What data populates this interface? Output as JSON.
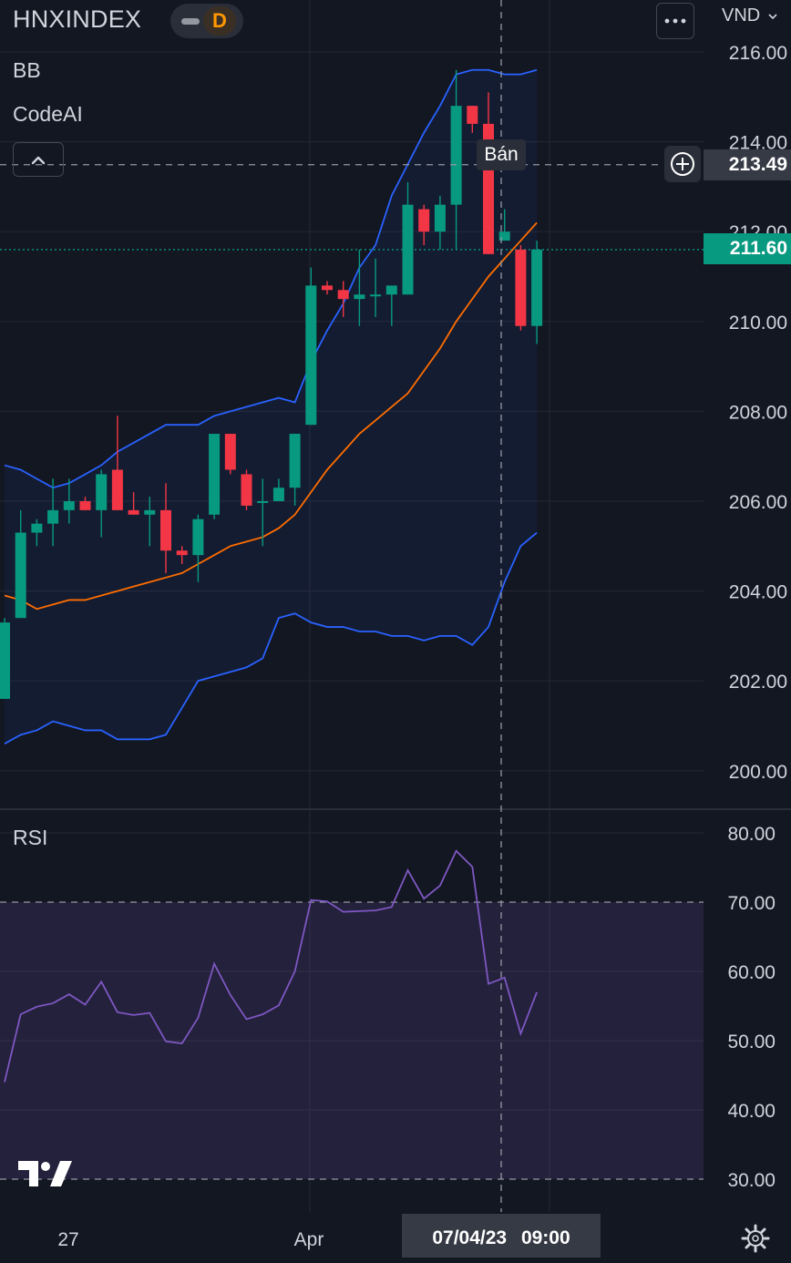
{
  "header": {
    "symbol": "HNXINDEX",
    "interval": "D",
    "currency": "VND",
    "indicators": [
      "BB",
      "CodeAI"
    ],
    "rsi_label": "RSI"
  },
  "price_axis": {
    "ticks": [
      "216.00",
      "214.00",
      "212.00",
      "210.00",
      "208.00",
      "206.00",
      "204.00",
      "202.00",
      "200.00"
    ],
    "crosshair_price": "213.49",
    "last_price": "211.60"
  },
  "rsi_axis": {
    "ticks": [
      "80.00",
      "70.00",
      "60.00",
      "50.00",
      "40.00",
      "30.00"
    ]
  },
  "time_axis": {
    "labels": [
      "27",
      "Apr"
    ],
    "crosshair_date": "07/04/23",
    "crosshair_time": "09:00"
  },
  "signal_label": "Bán",
  "icons": {
    "more": "more-icon",
    "collapse": "chevron-up-icon",
    "add": "plus-circle-icon",
    "settings": "gear-icon",
    "logo": "tradingview-logo"
  },
  "colors": {
    "background": "#131722",
    "up": "#089981",
    "down": "#f23645",
    "bb_band": "#2962ff",
    "bb_basis": "#ff6d00",
    "rsi": "#7e57c2",
    "accent": "#ff9800"
  },
  "chart_data": [
    {
      "type": "candlestick",
      "title": "HNXINDEX",
      "indicators": [
        "Bollinger Bands",
        "CodeAI"
      ],
      "ylim": [
        199.2,
        216.4
      ],
      "y_ticks": [
        216,
        214,
        212,
        210,
        208,
        206,
        204,
        202,
        200
      ],
      "grid": true,
      "candles": [
        {
          "o": 201.6,
          "h": 203.4,
          "l": 201.6,
          "c": 203.3
        },
        {
          "o": 203.4,
          "h": 205.8,
          "l": 203.4,
          "c": 205.3
        },
        {
          "o": 205.3,
          "h": 205.6,
          "l": 205.0,
          "c": 205.5
        },
        {
          "o": 205.5,
          "h": 206.5,
          "l": 205.0,
          "c": 205.8
        },
        {
          "o": 205.8,
          "h": 206.5,
          "l": 205.5,
          "c": 206.0
        },
        {
          "o": 206.0,
          "h": 206.1,
          "l": 205.8,
          "c": 205.8
        },
        {
          "o": 205.8,
          "h": 206.7,
          "l": 205.2,
          "c": 206.6
        },
        {
          "o": 206.7,
          "h": 207.9,
          "l": 205.8,
          "c": 205.8
        },
        {
          "o": 205.8,
          "h": 206.2,
          "l": 205.7,
          "c": 205.7
        },
        {
          "o": 205.7,
          "h": 206.1,
          "l": 205.0,
          "c": 205.8
        },
        {
          "o": 205.8,
          "h": 206.4,
          "l": 204.4,
          "c": 204.9
        },
        {
          "o": 204.9,
          "h": 205.0,
          "l": 204.6,
          "c": 204.8
        },
        {
          "o": 204.8,
          "h": 205.7,
          "l": 204.2,
          "c": 205.6
        },
        {
          "o": 205.7,
          "h": 207.5,
          "l": 205.6,
          "c": 207.5
        },
        {
          "o": 207.5,
          "h": 207.5,
          "l": 206.6,
          "c": 206.7
        },
        {
          "o": 206.6,
          "h": 206.7,
          "l": 205.8,
          "c": 205.9
        },
        {
          "o": 206.0,
          "h": 206.5,
          "l": 205.0,
          "c": 206.0
        },
        {
          "o": 206.0,
          "h": 206.5,
          "l": 206.0,
          "c": 206.3
        },
        {
          "o": 206.3,
          "h": 207.5,
          "l": 205.9,
          "c": 207.5
        },
        {
          "o": 207.7,
          "h": 211.2,
          "l": 207.7,
          "c": 210.8
        },
        {
          "o": 210.8,
          "h": 210.9,
          "l": 210.6,
          "c": 210.7
        },
        {
          "o": 210.7,
          "h": 210.9,
          "l": 210.1,
          "c": 210.5
        },
        {
          "o": 210.5,
          "h": 211.6,
          "l": 209.9,
          "c": 210.6
        },
        {
          "o": 210.6,
          "h": 211.4,
          "l": 210.1,
          "c": 210.6
        },
        {
          "o": 210.6,
          "h": 210.8,
          "l": 209.9,
          "c": 210.8
        },
        {
          "o": 210.6,
          "h": 213.1,
          "l": 210.6,
          "c": 212.6
        },
        {
          "o": 212.5,
          "h": 212.6,
          "l": 211.7,
          "c": 212.0
        },
        {
          "o": 212.0,
          "h": 212.8,
          "l": 211.6,
          "c": 212.6
        },
        {
          "o": 212.6,
          "h": 215.6,
          "l": 211.6,
          "c": 214.8
        },
        {
          "o": 214.8,
          "h": 214.8,
          "l": 214.2,
          "c": 214.4
        },
        {
          "o": 214.4,
          "h": 215.1,
          "l": 211.5,
          "c": 211.5
        },
        {
          "o": 211.8,
          "h": 212.5,
          "l": 211.8,
          "c": 212.0
        },
        {
          "o": 211.6,
          "h": 211.7,
          "l": 209.8,
          "c": 209.9
        },
        {
          "o": 209.9,
          "h": 211.8,
          "l": 209.5,
          "c": 211.6
        }
      ],
      "bb_upper": [
        206.8,
        206.7,
        206.5,
        206.3,
        206.4,
        206.6,
        206.8,
        207.1,
        207.3,
        207.5,
        207.7,
        207.7,
        207.7,
        207.9,
        208.0,
        208.1,
        208.2,
        208.3,
        208.2,
        209.1,
        209.8,
        210.4,
        211.2,
        211.7,
        212.8,
        213.5,
        214.2,
        214.8,
        215.5,
        215.6,
        215.6,
        215.5,
        215.5,
        215.6
      ],
      "bb_basis": [
        203.9,
        203.8,
        203.6,
        203.7,
        203.8,
        203.8,
        203.9,
        204.0,
        204.1,
        204.2,
        204.3,
        204.4,
        204.6,
        204.8,
        205.0,
        205.1,
        205.2,
        205.4,
        205.7,
        206.2,
        206.7,
        207.1,
        207.5,
        207.8,
        208.1,
        208.4,
        208.9,
        209.4,
        210.0,
        210.5,
        211.0,
        211.4,
        211.8,
        212.2
      ],
      "bb_lower": [
        200.6,
        200.8,
        200.9,
        201.1,
        201.0,
        200.9,
        200.9,
        200.7,
        200.7,
        200.7,
        200.8,
        201.4,
        202.0,
        202.1,
        202.2,
        202.3,
        202.5,
        203.4,
        203.5,
        203.3,
        203.2,
        203.2,
        203.1,
        203.1,
        203.0,
        203.0,
        202.9,
        203.0,
        203.0,
        202.8,
        203.2,
        204.2,
        205.0,
        205.3
      ],
      "crosshair_price": 213.49,
      "last_price": 211.6,
      "annotations": [
        "Bán"
      ]
    },
    {
      "type": "line",
      "title": "RSI",
      "ylim": [
        28,
        83
      ],
      "y_ticks": [
        80,
        70,
        60,
        50,
        40,
        30
      ],
      "levels": [
        70,
        30
      ],
      "values": [
        44.0,
        53.8,
        54.9,
        55.4,
        56.7,
        55.2,
        58.5,
        54.1,
        53.7,
        54.0,
        49.9,
        49.6,
        53.3,
        61.1,
        56.6,
        53.1,
        53.8,
        55.1,
        60.0,
        70.3,
        70.1,
        68.6,
        68.7,
        68.8,
        69.3,
        74.6,
        70.5,
        72.4,
        77.4,
        75.1,
        58.2,
        59.1,
        51.0,
        57.0
      ]
    }
  ]
}
